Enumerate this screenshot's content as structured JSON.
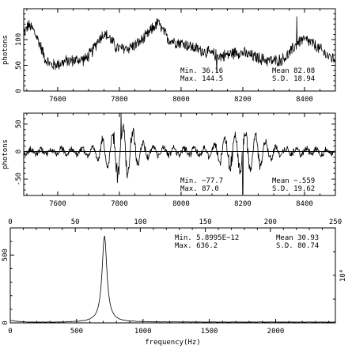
{
  "chart_data": [
    {
      "type": "line",
      "ylabel": "photons",
      "xlim": [
        7490,
        8500
      ],
      "ylim": [
        0,
        160
      ],
      "xticks": [
        7600,
        7800,
        8000,
        8200,
        8400
      ],
      "yticks": [
        0,
        50,
        100
      ],
      "stats": {
        "min_label": "Min. 36.16",
        "max_label": "Max. 144.5",
        "mean_label": "Mean 82.08",
        "sd_label": "S.D. 18.94"
      },
      "signal": {
        "x_start": 7490,
        "x_end": 8500,
        "points": 760,
        "baseline": [
          [
            7490,
            112
          ],
          [
            7505,
            128
          ],
          [
            7520,
            120
          ],
          [
            7540,
            95
          ],
          [
            7560,
            62
          ],
          [
            7580,
            50
          ],
          [
            7600,
            52
          ],
          [
            7630,
            58
          ],
          [
            7660,
            60
          ],
          [
            7690,
            62
          ],
          [
            7710,
            75
          ],
          [
            7730,
            98
          ],
          [
            7750,
            112
          ],
          [
            7770,
            102
          ],
          [
            7790,
            84
          ],
          [
            7810,
            82
          ],
          [
            7830,
            84
          ],
          [
            7860,
            92
          ],
          [
            7890,
            108
          ],
          [
            7910,
            124
          ],
          [
            7925,
            132
          ],
          [
            7940,
            118
          ],
          [
            7960,
            100
          ],
          [
            7980,
            96
          ],
          [
            8010,
            92
          ],
          [
            8040,
            84
          ],
          [
            8070,
            78
          ],
          [
            8100,
            72
          ],
          [
            8130,
            68
          ],
          [
            8160,
            72
          ],
          [
            8180,
            76
          ],
          [
            8200,
            74
          ],
          [
            8230,
            68
          ],
          [
            8260,
            62
          ],
          [
            8300,
            58
          ],
          [
            8330,
            62
          ],
          [
            8350,
            72
          ],
          [
            8370,
            88
          ],
          [
            8390,
            100
          ],
          [
            8410,
            98
          ],
          [
            8430,
            90
          ],
          [
            8460,
            76
          ],
          [
            8480,
            66
          ],
          [
            8500,
            62
          ]
        ],
        "noise": 7,
        "spikes": [
          [
            8375,
            144.5
          ],
          [
            8115,
            36.16
          ],
          [
            7925,
            140
          ]
        ]
      }
    },
    {
      "type": "line",
      "ylabel": "photons",
      "xlim": [
        7490,
        8500
      ],
      "ylim": [
        -80,
        70
      ],
      "xticks": [
        7600,
        7800,
        8000,
        8200,
        8400
      ],
      "yticks": [
        -50,
        0,
        50
      ],
      "stats": {
        "min_label": "Min. −77.7",
        "max_label": "Max. 87.0",
        "mean_label": "Mean −.559",
        "sd_label": "S.D. 19.62"
      },
      "signal": {
        "x_start": 7490,
        "x_end": 8500,
        "points": 760,
        "carrier_hz": 0.19,
        "envelope": [
          [
            7490,
            6
          ],
          [
            7600,
            6
          ],
          [
            7700,
            9
          ],
          [
            7740,
            24
          ],
          [
            7780,
            50
          ],
          [
            7810,
            58
          ],
          [
            7840,
            46
          ],
          [
            7870,
            26
          ],
          [
            7900,
            10
          ],
          [
            8000,
            8
          ],
          [
            8080,
            10
          ],
          [
            8130,
            24
          ],
          [
            8170,
            40
          ],
          [
            8210,
            46
          ],
          [
            8250,
            38
          ],
          [
            8290,
            18
          ],
          [
            8330,
            8
          ],
          [
            8500,
            6
          ]
        ],
        "noise": 5,
        "spikes": [
          [
            7805,
            87
          ],
          [
            8200,
            -77.7
          ]
        ]
      }
    },
    {
      "type": "line",
      "xlabel": "frequency(Hz)",
      "xlim": [
        0,
        2450
      ],
      "ylim": [
        0,
        700
      ],
      "xticks": [
        0,
        500,
        1000,
        1500,
        2000
      ],
      "yticks": [
        0,
        500
      ],
      "top_axis": {
        "lim": [
          0,
          250
        ],
        "ticks": [
          0,
          50,
          100,
          150,
          200,
          250
        ]
      },
      "right_axis_label": "10⁴",
      "stats": {
        "min_label": "Min. 5.8995E−12",
        "max_label": "Max. 636.2",
        "mean_label": "Mean 30.93",
        "sd_label": "S.D. 80.74"
      },
      "signal": {
        "points": 490,
        "peak_center": 710,
        "peak_height": 636.2,
        "peak_width": 28,
        "shoulder": [
          [
            0,
            45
          ],
          [
            60,
            20
          ],
          [
            150,
            8
          ],
          [
            300,
            5
          ],
          [
            500,
            6
          ],
          [
            650,
            10
          ]
        ],
        "floor": 2.5
      }
    }
  ]
}
